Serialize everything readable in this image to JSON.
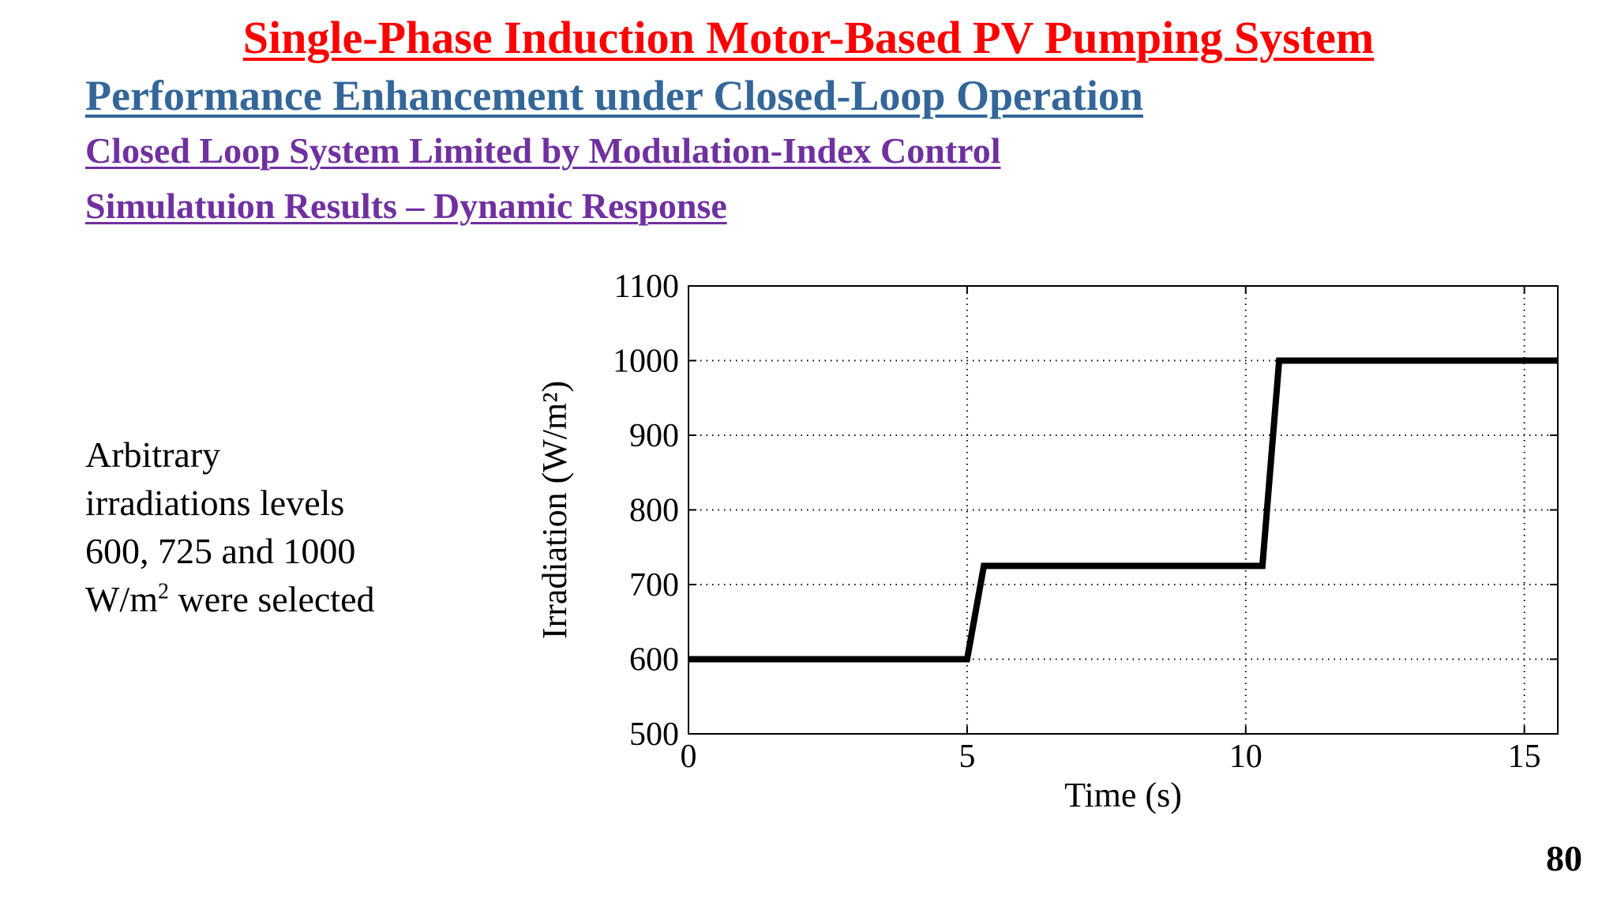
{
  "slide": {
    "title": "Single-Phase Induction Motor-Based PV Pumping System",
    "subtitle": "Performance Enhancement under Closed-Loop Operation",
    "heading1": "Closed Loop System Limited by Modulation-Index Control",
    "heading2": "Simulatuion Results – Dynamic Response",
    "side_text": {
      "line1": "Arbitrary",
      "line2": "irradiations levels",
      "line3": "600, 725 and 1000",
      "line4_pre": "W/m",
      "line4_sup": "2",
      "line4_post": " were selected"
    },
    "page_number": "80"
  },
  "chart_data": {
    "type": "line",
    "xlabel": "Time (s)",
    "ylabel": "Irradiation (W/m²)",
    "xlim": [
      0,
      15.6
    ],
    "ylim": [
      500,
      1100
    ],
    "xticks": [
      0,
      5,
      10,
      15
    ],
    "yticks": [
      500,
      600,
      700,
      800,
      900,
      1000,
      1100
    ],
    "grid": true,
    "grid_style": "dotted",
    "line_color": "#000000",
    "series": [
      {
        "x": [
          0,
          5.0,
          5.3,
          10.3,
          10.6,
          15.6
        ],
        "y": [
          600,
          600,
          725,
          725,
          1000,
          1000
        ]
      }
    ]
  }
}
